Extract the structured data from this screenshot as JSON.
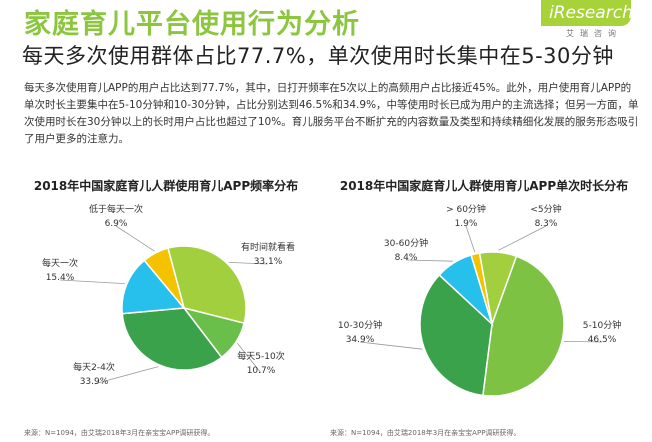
{
  "header": {
    "title": "家庭育儿平台使用行为分析",
    "headline": "每天多次使用群体占比77.7%，单次使用时长集中在5-30分钟",
    "logo_text": "iResearch",
    "logo_sub": "艾瑞咨询"
  },
  "summary": "每天多次使用育儿APP的用户占比达到77.7%，其中，日打开频率在5次以上的高频用户占比接近45%。此外，用户使用育儿APP的单次时长主要集中在5-10分钟和10-30分钟，占比分别达到46.5%和34.9%，中等使用时长已成为用户的主流选择；但另一方面，单次使用时长在30分钟以上的长时用户占比也超过了10%。育儿服务平台不断扩充的内容数量及类型和持续精细化发展的服务形态吸引了用户更多的注意力。",
  "colors": {
    "green_light": "#a2cf3e",
    "green_mid": "#6abf4b",
    "green_dark": "#3aa24a",
    "cyan": "#27c0ec",
    "yellow": "#f5c200"
  },
  "chart_data": [
    {
      "type": "pie",
      "title": "2018年中国家庭育儿人群使用育儿APP频率分布",
      "slices": [
        {
          "label": "有时间就看看",
          "value": 33.1,
          "display": "33.1%",
          "color": "#a2cf3e"
        },
        {
          "label": "每天5-10次",
          "value": 10.7,
          "display": "10.7%",
          "color": "#6abf4b"
        },
        {
          "label": "每天2-4次",
          "value": 33.9,
          "display": "33.9%",
          "color": "#3aa24a"
        },
        {
          "label": "每天一次",
          "value": 15.4,
          "display": "15.4%",
          "color": "#27c0ec"
        },
        {
          "label": "低于每天一次",
          "value": 6.9,
          "display": "6.9%",
          "color": "#f5c200"
        }
      ],
      "source": "来源：N=1094，由艾瑞2018年3月在亲宝宝APP调研获得。"
    },
    {
      "type": "pie",
      "title": "2018年中国家庭育儿人群使用育儿APP单次时长分布",
      "slices": [
        {
          "label": "<5分钟",
          "value": 8.3,
          "display": "8.3%",
          "color": "#a2cf3e"
        },
        {
          "label": "5-10分钟",
          "value": 46.5,
          "display": "46.5%",
          "color": "#7dc242"
        },
        {
          "label": "10-30分钟",
          "value": 34.9,
          "display": "34.9%",
          "color": "#3aa24a"
        },
        {
          "label": "30-60分钟",
          "value": 8.4,
          "display": "8.4%",
          "color": "#27c0ec"
        },
        {
          "label": "> 60分钟",
          "value": 1.9,
          "display": "1.9%",
          "color": "#f5c200"
        }
      ],
      "source": "来源：N=1094，由艾瑞2018年3月在亲宝宝APP调研获得。"
    }
  ]
}
